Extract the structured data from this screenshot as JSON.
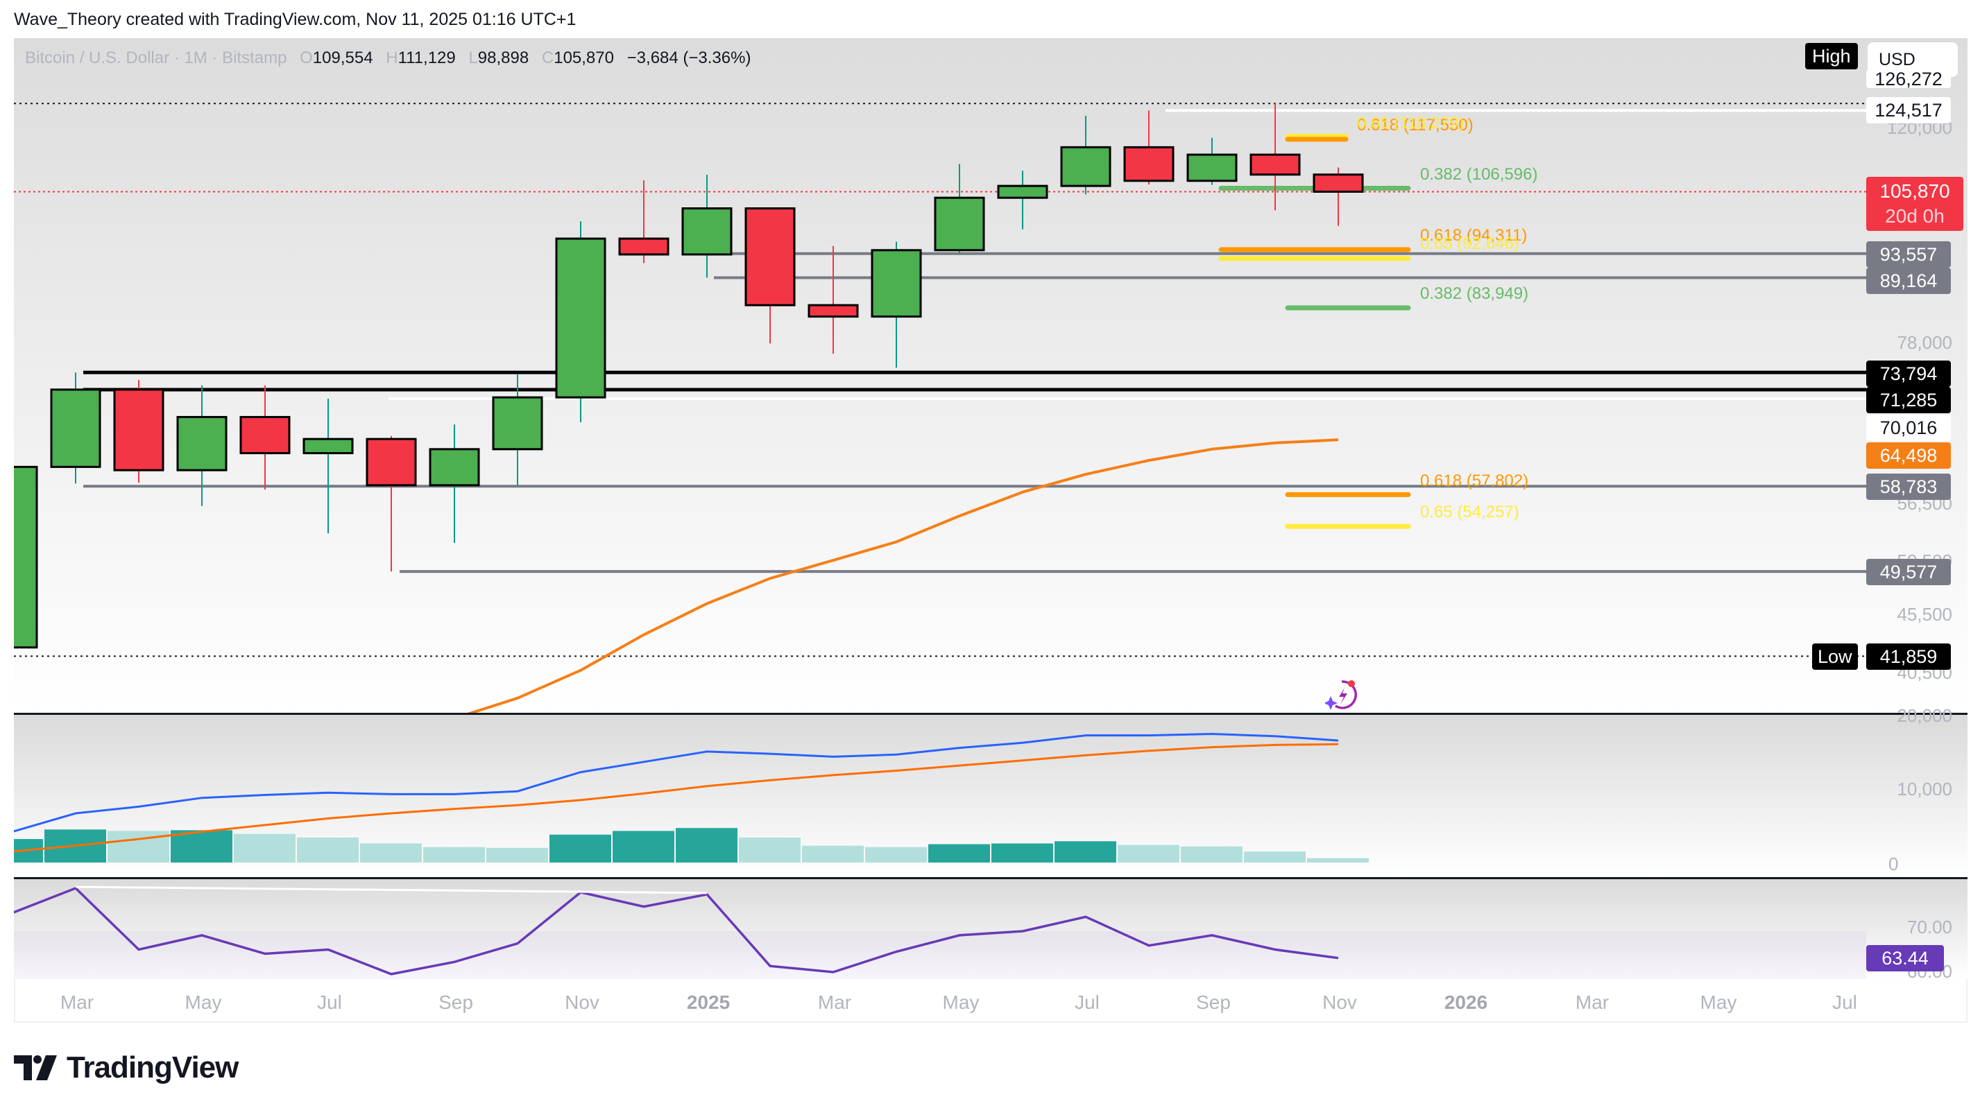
{
  "caption": "Wave_Theory created with TradingView.com, Nov 11, 2025 01:16 UTC+1",
  "legend": {
    "symbol": "Bitcoin / U.S. Dollar · 1M · Bitstamp",
    "o_label": "O",
    "open": "109,554",
    "h_label": "H",
    "high": "111,129",
    "l_label": "L",
    "low": "98,898",
    "c_label": "C",
    "close": "105,870",
    "change": "−3,684 (−3.36%)"
  },
  "controls": {
    "high_button": "High",
    "currency": "USD",
    "low_button": "Low"
  },
  "price_axis": {
    "ticks": [
      "126,272",
      "120,000",
      "78,000",
      "56,500",
      "50,500",
      "45,500",
      "40,500",
      "20,000"
    ],
    "labels": {
      "ath": "124,517",
      "last_price": "105,870",
      "countdown": "20d 0h",
      "s1": "93,557",
      "s2": "89,164",
      "r_black1": "73,794",
      "r_black2": "71,285",
      "white_line": "70,016",
      "ema": "64,498",
      "s3": "58,783",
      "s4": "49,577",
      "low_value": "41,859"
    }
  },
  "macd_axis": {
    "ticks": [
      "20,000",
      "10,000",
      "0"
    ]
  },
  "rsi_axis": {
    "ticks": [
      "70.00",
      "60.00"
    ],
    "value": "63.44"
  },
  "fib_labels": [
    {
      "text": "0.618 (117,550)",
      "color": "#ff9800"
    },
    {
      "text": "0.65 (118,279)",
      "color": "#ffeb3b"
    },
    {
      "text": "0.382 (106,596)",
      "color": "#66bb6a"
    },
    {
      "text": "0.618 (94,311)",
      "color": "#ff9800"
    },
    {
      "text": "0.65 (92,646)",
      "color": "#ffeb3b"
    },
    {
      "text": "0.382 (83,949)",
      "color": "#66bb6a"
    },
    {
      "text": "0.618 (57,802)",
      "color": "#ff9800"
    },
    {
      "text": "0.65 (54,257)",
      "color": "#ffeb3b"
    }
  ],
  "time_axis": [
    "Mar",
    "May",
    "Jul",
    "Sep",
    "Nov",
    "2025",
    "Mar",
    "May",
    "Jul",
    "Sep",
    "Nov",
    "2026",
    "Mar",
    "May",
    "Jul"
  ],
  "brand": "TradingView",
  "colors": {
    "up": "#4caf50",
    "down": "#f23645",
    "wick_up": "#089981",
    "wick_down": "#f23645",
    "ema": "#f57f17",
    "macd": "#2962ff",
    "signal": "#ff6d00",
    "hist_strong": "#26a69a",
    "hist_weak": "#b2dfdb",
    "rsi": "#673ab7"
  },
  "chart_data": [
    {
      "type": "candlestick",
      "title": "Bitcoin / U.S. Dollar · 1M · Bitstamp",
      "scale": "log",
      "x": [
        "2024-02",
        "2024-03",
        "2024-04",
        "2024-05",
        "2024-06",
        "2024-07",
        "2024-08",
        "2024-09",
        "2024-10",
        "2024-11",
        "2024-12",
        "2025-01",
        "2025-02",
        "2025-03",
        "2025-04",
        "2025-05",
        "2025-06",
        "2025-07",
        "2025-08",
        "2025-09",
        "2025-10",
        "2025-11"
      ],
      "open": [
        42600,
        61100,
        71300,
        60700,
        67500,
        62800,
        64600,
        58900,
        63300,
        70200,
        96400,
        93400,
        102400,
        84400,
        82500,
        94200,
        104600,
        107100,
        115700,
        108200,
        114000,
        109554
      ],
      "high": [
        63000,
        73794,
        72700,
        71900,
        71900,
        70016,
        65000,
        66500,
        73600,
        99800,
        108300,
        109500,
        102500,
        95000,
        95800,
        111900,
        110400,
        123200,
        124517,
        117900,
        126272,
        111129
      ],
      "low": [
        41859,
        59100,
        59200,
        56500,
        58400,
        53500,
        49577,
        52500,
        58900,
        66800,
        91800,
        89164,
        78200,
        76600,
        74500,
        93500,
        98200,
        105300,
        107400,
        107300,
        102000,
        98898
      ],
      "close": [
        61100,
        71300,
        60700,
        67500,
        62800,
        64600,
        58900,
        63300,
        70200,
        96400,
        93400,
        102400,
        84400,
        82500,
        94200,
        104600,
        107100,
        115700,
        108200,
        114000,
        109554,
        105870
      ],
      "overlays": {
        "ema": {
          "label": "EMA",
          "value": 64498,
          "values": [
            null,
            null,
            null,
            null,
            null,
            null,
            null,
            null,
            38500,
            40700,
            43700,
            46500,
            48900,
            50700,
            52600,
            55400,
            58100,
            60200,
            61900,
            63300,
            64100,
            64498
          ]
        },
        "horizontal_levels": [
          124517,
          93557,
          89164,
          73794,
          71285,
          70016,
          58783,
          49577,
          41859
        ],
        "fibonacci": [
          {
            "ratio": 0.618,
            "price": 117550
          },
          {
            "ratio": 0.65,
            "price": 118279
          },
          {
            "ratio": 0.382,
            "price": 106596
          },
          {
            "ratio": 0.618,
            "price": 94311
          },
          {
            "ratio": 0.65,
            "price": 92646
          },
          {
            "ratio": 0.382,
            "price": 83949
          },
          {
            "ratio": 0.618,
            "price": 57802
          },
          {
            "ratio": 0.65,
            "price": 54257
          }
        ]
      },
      "ylim": [
        38000,
        130000
      ]
    },
    {
      "type": "line+bar",
      "title": "MACD",
      "x": [
        "2024-02",
        "2024-03",
        "2024-04",
        "2024-05",
        "2024-06",
        "2024-07",
        "2024-08",
        "2024-09",
        "2024-10",
        "2024-11",
        "2024-12",
        "2025-01",
        "2025-02",
        "2025-03",
        "2025-04",
        "2025-05",
        "2025-06",
        "2025-07",
        "2025-08",
        "2025-09",
        "2025-10",
        "2025-11"
      ],
      "series": [
        {
          "name": "MACD",
          "values": [
            4200,
            6700,
            7600,
            8800,
            9200,
            9500,
            9300,
            9300,
            9700,
            12300,
            13700,
            15100,
            14800,
            14400,
            14700,
            15600,
            16300,
            17300,
            17300,
            17500,
            17200,
            16600
          ]
        },
        {
          "name": "Signal",
          "values": [
            1500,
            2300,
            3200,
            4200,
            5100,
            6000,
            6700,
            7300,
            7800,
            8500,
            9400,
            10400,
            11200,
            11900,
            12500,
            13200,
            13900,
            14600,
            15200,
            15700,
            16000,
            16100
          ]
        },
        {
          "name": "Histogram",
          "values": [
            3200,
            4500,
            4300,
            4400,
            3900,
            3400,
            2600,
            2100,
            2000,
            3800,
            4300,
            4700,
            3400,
            2300,
            2100,
            2500,
            2600,
            2900,
            2400,
            2200,
            1500,
            600
          ]
        }
      ],
      "ylim": [
        0,
        20000
      ]
    },
    {
      "type": "line",
      "title": "RSI",
      "x": [
        "2024-02",
        "2024-03",
        "2024-04",
        "2024-05",
        "2024-06",
        "2024-07",
        "2024-08",
        "2024-09",
        "2024-10",
        "2024-11",
        "2024-12",
        "2025-01",
        "2025-02",
        "2025-03",
        "2025-04",
        "2025-05",
        "2025-06",
        "2025-07",
        "2025-08",
        "2025-09",
        "2025-10",
        "2025-11"
      ],
      "values": [
        74.5,
        80.5,
        65.5,
        69.0,
        64.5,
        65.5,
        59.5,
        62.5,
        67.0,
        79.5,
        76.0,
        79.0,
        61.5,
        60.0,
        65.0,
        69.0,
        70.0,
        73.5,
        66.5,
        69.0,
        65.5,
        63.44
      ],
      "ylim": [
        55,
        82
      ],
      "ticks": [
        60,
        70
      ]
    }
  ]
}
